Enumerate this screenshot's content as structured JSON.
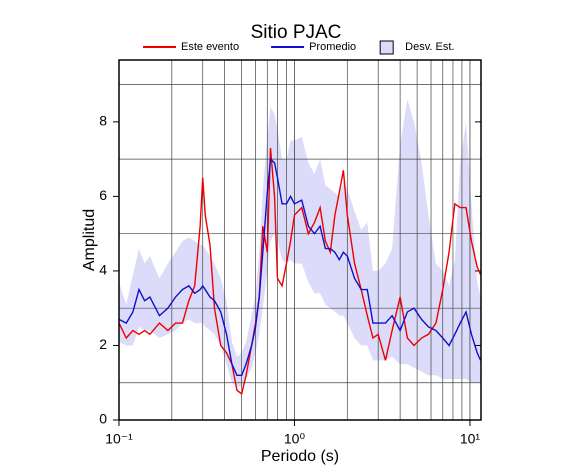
{
  "chart_data": {
    "type": "line",
    "title": "Sitio PJAC",
    "x_label": "Periodo (s)",
    "y_label": "Amplitud",
    "log_x": true,
    "grid": true,
    "xlim": [
      0.1,
      11.56
    ],
    "ylim": [
      0,
      9.66
    ],
    "xticks": [
      {
        "value": 0.1,
        "label": "10⁻¹"
      },
      {
        "value": 1,
        "label": "10⁰"
      },
      {
        "value": 10,
        "label": "10¹"
      }
    ],
    "yticks": [
      0,
      2,
      4,
      6,
      8
    ],
    "x": [
      0.1,
      0.11,
      0.12,
      0.13,
      0.14,
      0.15,
      0.17,
      0.19,
      0.21,
      0.23,
      0.25,
      0.27,
      0.29,
      0.3,
      0.31,
      0.33,
      0.35,
      0.38,
      0.41,
      0.44,
      0.47,
      0.5,
      0.53,
      0.57,
      0.6,
      0.63,
      0.66,
      0.7,
      0.73,
      0.77,
      0.8,
      0.85,
      0.9,
      0.95,
      1.0,
      1.1,
      1.2,
      1.3,
      1.4,
      1.5,
      1.6,
      1.7,
      1.8,
      1.9,
      2.0,
      2.2,
      2.4,
      2.6,
      2.8,
      3.0,
      3.3,
      3.6,
      4.0,
      4.4,
      4.8,
      5.3,
      5.8,
      6.4,
      7.0,
      7.6,
      8.2,
      8.8,
      9.5,
      10.2,
      11.0,
      11.5
    ],
    "band": {
      "name": "Desv. Est.",
      "color": "#dcdcfa",
      "lower": [
        2.1,
        2.0,
        2.0,
        2.5,
        2.4,
        2.4,
        2.2,
        2.3,
        2.4,
        2.6,
        2.7,
        2.6,
        2.6,
        2.6,
        2.5,
        2.4,
        2.3,
        2.0,
        1.5,
        1.0,
        0.9,
        0.9,
        1.1,
        1.4,
        1.8,
        2.3,
        3.0,
        4.0,
        4.8,
        5.0,
        4.8,
        4.3,
        4.2,
        4.3,
        4.2,
        4.2,
        3.7,
        3.4,
        3.4,
        3.1,
        3.0,
        2.9,
        2.8,
        2.8,
        2.6,
        2.2,
        2.0,
        2.0,
        1.6,
        1.6,
        1.6,
        1.7,
        1.5,
        1.5,
        1.4,
        1.3,
        1.2,
        1.2,
        1.1,
        1.1,
        1.1,
        1.1,
        1.1,
        1.0,
        1.0,
        1.0
      ],
      "upper": [
        3.7,
        3.1,
        3.9,
        4.6,
        4.2,
        4.4,
        3.8,
        4.2,
        4.5,
        4.8,
        4.9,
        4.8,
        4.7,
        4.7,
        4.6,
        4.4,
        4.2,
        3.8,
        3.2,
        2.1,
        1.7,
        1.8,
        2.1,
        2.8,
        3.4,
        4.5,
        6.2,
        7.6,
        8.4,
        8.2,
        7.8,
        7.0,
        7.0,
        7.5,
        7.5,
        7.6,
        6.9,
        6.6,
        7.0,
        6.3,
        6.2,
        6.1,
        6.0,
        6.4,
        6.2,
        5.6,
        5.1,
        5.3,
        4.0,
        4.0,
        4.2,
        4.6,
        7.4,
        8.6,
        8.0,
        6.9,
        5.5,
        4.2,
        4.0,
        3.6,
        4.3,
        6.9,
        8.0,
        5.8,
        3.7,
        3.3
      ]
    },
    "series": [
      {
        "name": "Este evento",
        "color": "#ee0000",
        "values": [
          2.6,
          2.2,
          2.4,
          2.3,
          2.4,
          2.3,
          2.6,
          2.4,
          2.6,
          2.6,
          3.2,
          3.6,
          5.2,
          6.5,
          5.5,
          4.7,
          3.0,
          2.0,
          1.8,
          1.5,
          0.8,
          0.7,
          1.2,
          2.0,
          2.6,
          3.3,
          5.2,
          4.5,
          7.3,
          6.0,
          3.8,
          3.6,
          4.2,
          4.8,
          5.5,
          5.7,
          5.0,
          5.3,
          5.7,
          4.8,
          4.5,
          5.5,
          6.1,
          6.7,
          5.5,
          4.2,
          3.5,
          2.8,
          2.2,
          2.3,
          1.6,
          2.4,
          3.3,
          2.2,
          2.0,
          2.2,
          2.3,
          2.6,
          3.5,
          4.5,
          5.8,
          5.7,
          5.7,
          4.8,
          4.1,
          3.9
        ]
      },
      {
        "name": "Promedio",
        "color": "#1010cc",
        "values": [
          2.7,
          2.6,
          2.9,
          3.5,
          3.2,
          3.3,
          2.8,
          3.0,
          3.3,
          3.5,
          3.6,
          3.4,
          3.5,
          3.6,
          3.5,
          3.3,
          3.2,
          2.9,
          2.3,
          1.5,
          1.2,
          1.2,
          1.5,
          2.0,
          2.5,
          3.3,
          4.5,
          6.1,
          7.0,
          6.9,
          6.5,
          5.8,
          5.8,
          6.0,
          5.8,
          5.9,
          5.2,
          5.0,
          5.2,
          4.6,
          4.6,
          4.5,
          4.3,
          4.5,
          4.4,
          3.8,
          3.5,
          3.5,
          2.6,
          2.6,
          2.6,
          2.8,
          2.4,
          2.9,
          3.0,
          2.7,
          2.5,
          2.4,
          2.2,
          2.0,
          2.3,
          2.6,
          2.9,
          2.3,
          1.8,
          1.6
        ]
      }
    ]
  }
}
